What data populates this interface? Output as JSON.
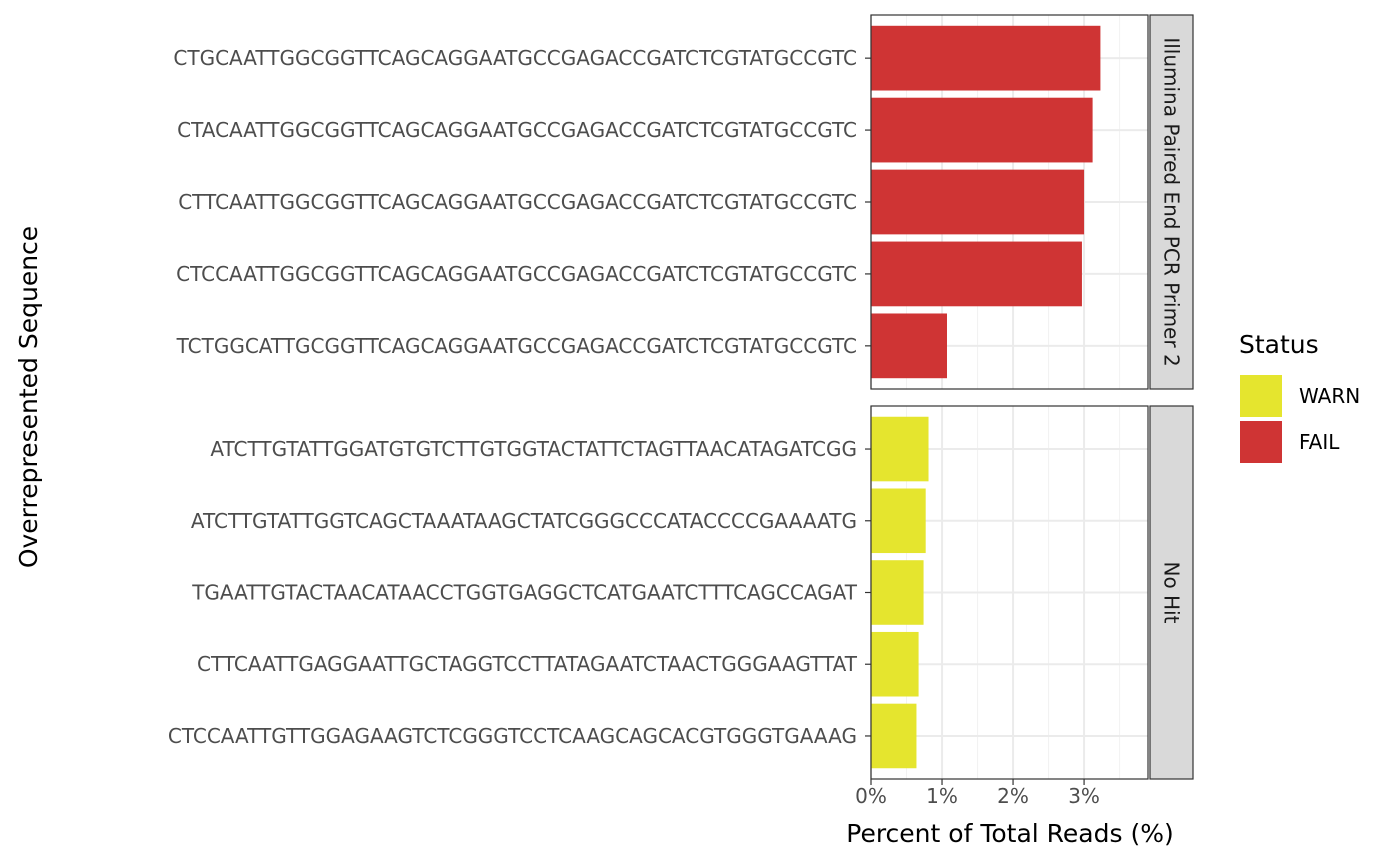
{
  "chart_data": {
    "type": "bar",
    "orientation": "horizontal",
    "xlabel": "Percent of Total Reads (%)",
    "ylabel": "Overrepresented Sequence",
    "xlim": [
      0,
      3.9
    ],
    "x_ticks": [
      0,
      1,
      2,
      3
    ],
    "x_tick_labels": [
      "0%",
      "1%",
      "2%",
      "3%"
    ],
    "grid": true,
    "legend": {
      "title": "Status",
      "position": "right",
      "entries": [
        {
          "label": "WARN",
          "color": "#E5E52E"
        },
        {
          "label": "FAIL",
          "color": "#CF3434"
        }
      ]
    },
    "facets": [
      {
        "label": "Illumina Paired End PCR Primer 2",
        "bars": [
          {
            "sequence": "CTGCAATTGGCGGTTCAGCAGGAATGCCGAGACCGATCTCGTATGCCGTC",
            "value": 3.23,
            "status": "FAIL"
          },
          {
            "sequence": "CTACAATTGGCGGTTCAGCAGGAATGCCGAGACCGATCTCGTATGCCGTC",
            "value": 3.12,
            "status": "FAIL"
          },
          {
            "sequence": "CTTCAATTGGCGGTTCAGCAGGAATGCCGAGACCGATCTCGTATGCCGTC",
            "value": 3.0,
            "status": "FAIL"
          },
          {
            "sequence": "CTCCAATTGGCGGTTCAGCAGGAATGCCGAGACCGATCTCGTATGCCGTC",
            "value": 2.97,
            "status": "FAIL"
          },
          {
            "sequence": "TCTGGCATTGCGGTTCAGCAGGAATGCCGAGACCGATCTCGTATGCCGTC",
            "value": 1.07,
            "status": "FAIL"
          }
        ]
      },
      {
        "label": "No Hit",
        "bars": [
          {
            "sequence": "ATCTTGTATTGGATGTGTCTTGTGGTACTATTCTAGTTAACATAGATCGG",
            "value": 0.81,
            "status": "WARN"
          },
          {
            "sequence": "ATCTTGTATTGGTCAGCTAAATAAGCTATCGGGCCCATACCCCGAAAATG",
            "value": 0.77,
            "status": "WARN"
          },
          {
            "sequence": "TGAATTGTACTAACATAACCTGGTGAGGCTCATGAATCTTTCAGCCAGAT",
            "value": 0.74,
            "status": "WARN"
          },
          {
            "sequence": "CTTCAATTGAGGAATTGCTAGGTCCTTATAGAATCTAACTGGGAAGTTAT",
            "value": 0.67,
            "status": "WARN"
          },
          {
            "sequence": "CTCCAATTGTTGGAGAAGTCTCGGGTCCTCAAGCAGCACGTGGGTGAAAG",
            "value": 0.64,
            "status": "WARN"
          }
        ]
      }
    ]
  }
}
